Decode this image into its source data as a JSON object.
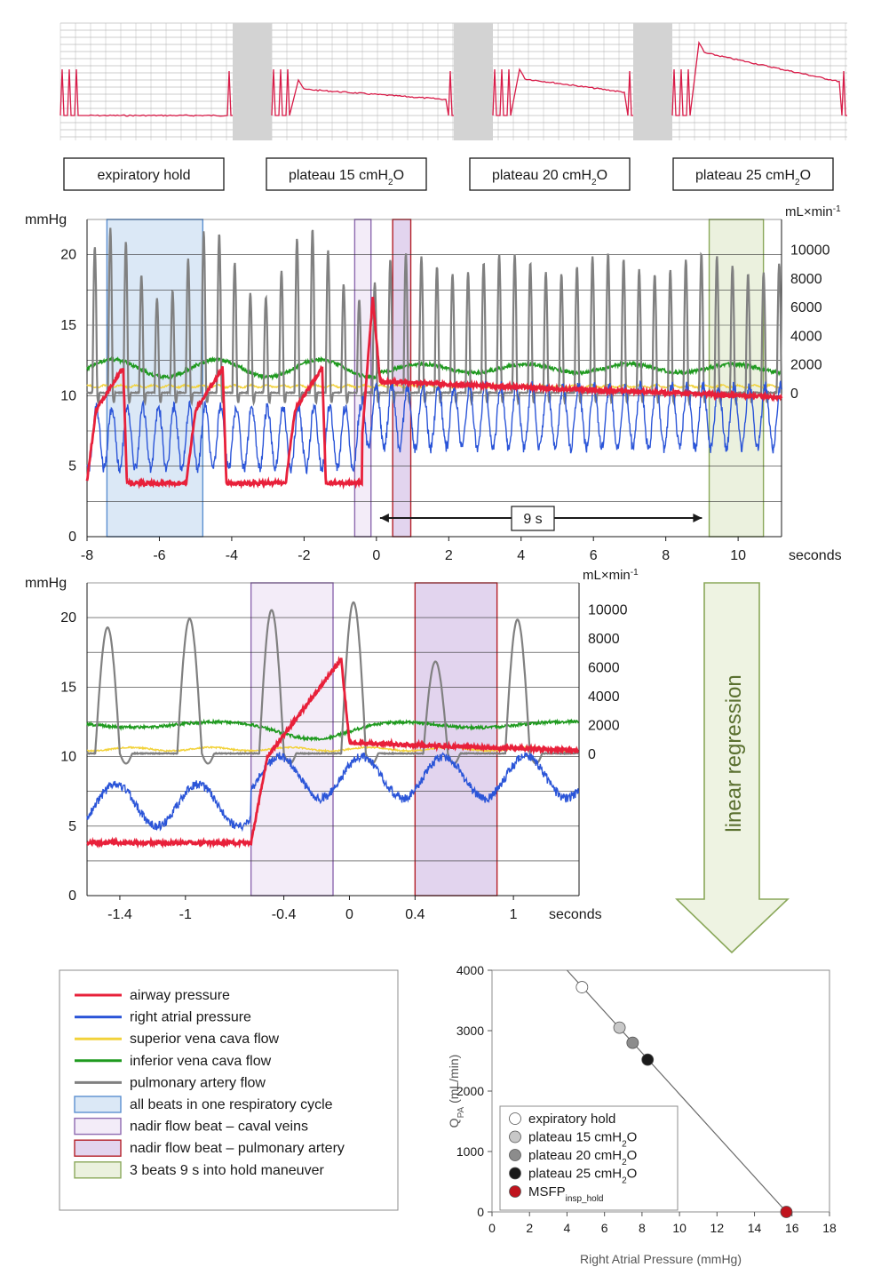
{
  "colors": {
    "airway": "#e8203a",
    "ra": "#2b55d8",
    "svc": "#f2d23a",
    "ivc": "#1f9a1f",
    "pa": "#808080",
    "blue_box": "#dbe8f6",
    "blue_box_edge": "#5b8fd0",
    "light_purple_box": "#f3ecf8",
    "purple_box_edge": "#8e6ab0",
    "dark_purple_box": "#e2d4ee",
    "red_box_edge": "#b42028",
    "green_box": "#ebf1de",
    "green_box_edge": "#8aa85a",
    "grid": "#333333"
  },
  "strip": {
    "labels": [
      {
        "main": "expiratory hold",
        "sub": ""
      },
      {
        "main": "plateau 15 cmH",
        "sub": "2",
        "tail": "O"
      },
      {
        "main": "plateau 20 cmH",
        "sub": "2",
        "tail": "O"
      },
      {
        "main": "plateau 25 cmH",
        "sub": "2",
        "tail": "O"
      }
    ]
  },
  "top_panel": {
    "left_unit": "mmHg",
    "right_unit": "mL×min",
    "right_unit_sup": "-1",
    "left_ticks": [
      "20",
      "15",
      "10",
      "5",
      "0"
    ],
    "right_ticks": [
      "10000",
      "8000",
      "6000",
      "4000",
      "2000",
      "0"
    ],
    "x_ticks": [
      "-8",
      "-6",
      "-4",
      "-2",
      "0",
      "2",
      "4",
      "6",
      "8",
      "10"
    ],
    "x_unit": "seconds",
    "annotation": "9 s"
  },
  "mid_panel": {
    "left_unit": "mmHg",
    "right_unit": "mL×min",
    "right_unit_sup": "-1",
    "left_ticks": [
      "20",
      "15",
      "10",
      "5",
      "0"
    ],
    "right_ticks": [
      "10000",
      "8000",
      "6000",
      "4000",
      "2000",
      "0"
    ],
    "x_ticks": [
      "-1.4",
      "-1",
      "-0.4",
      "0",
      "0.4",
      "1"
    ],
    "x_unit": "seconds"
  },
  "arrow_text": "linear regression",
  "legend": {
    "items": [
      {
        "label": "airway pressure",
        "kind": "line",
        "color": "#e8203a"
      },
      {
        "label": "right atrial pressure",
        "kind": "line",
        "color": "#2b55d8"
      },
      {
        "label": "superior vena cava flow",
        "kind": "line",
        "color": "#f2d23a"
      },
      {
        "label": "inferior vena cava flow",
        "kind": "line",
        "color": "#1f9a1f"
      },
      {
        "label": "pulmonary artery flow",
        "kind": "line",
        "color": "#808080"
      },
      {
        "label": "all beats in one respiratory cycle",
        "kind": "box",
        "fill": "#dbe8f6",
        "edge": "#5b8fd0"
      },
      {
        "label": "nadir flow beat – caval veins",
        "kind": "box",
        "fill": "#f3ecf8",
        "edge": "#8e6ab0"
      },
      {
        "label": "nadir flow beat – pulmonary artery",
        "kind": "box",
        "fill": "#e2d4ee",
        "edge": "#b42028"
      },
      {
        "label": "3 beats 9 s into hold maneuver",
        "kind": "box",
        "fill": "#ebf1de",
        "edge": "#8aa85a"
      }
    ]
  },
  "chart_data": {
    "type": "scatter",
    "xlabel": "Right Atrial Pressure (mmHg)",
    "ylabel": "Q",
    "ylabel_sub": "PA",
    "ylabel_tail": " (mL/min)",
    "xlim": [
      0,
      18
    ],
    "ylim": [
      0,
      4000
    ],
    "x_ticks": [
      "0",
      "2",
      "4",
      "6",
      "8",
      "10",
      "12",
      "14",
      "16",
      "18"
    ],
    "y_ticks": [
      "0",
      "1000",
      "2000",
      "3000",
      "4000"
    ],
    "series": [
      {
        "name": "expiratory hold",
        "x": 4.8,
        "y": 3720,
        "color": "#ffffff"
      },
      {
        "name": "plateau 15 cmH2O",
        "x": 6.8,
        "y": 3050,
        "color": "#c8c8c8"
      },
      {
        "name": "plateau 20 cmH2O",
        "x": 7.5,
        "y": 2800,
        "color": "#8c8c8c"
      },
      {
        "name": "plateau 25 cmH2O",
        "x": 8.3,
        "y": 2520,
        "color": "#1a1a1a"
      },
      {
        "name": "MSFP",
        "x": 15.7,
        "y": 0,
        "color": "#c0141e"
      }
    ],
    "regression_line": {
      "x": [
        4,
        15.7
      ],
      "y": [
        4000,
        0
      ]
    },
    "legend_entries": [
      {
        "main": "expiratory hold",
        "sub": "",
        "tail": ""
      },
      {
        "main": "plateau 15 cmH",
        "sub": "2",
        "tail": "O"
      },
      {
        "main": "plateau 20 cmH",
        "sub": "2",
        "tail": "O"
      },
      {
        "main": "plateau 25 cmH",
        "sub": "2",
        "tail": "O"
      },
      {
        "main": "MSFP",
        "sub": "insp_hold",
        "tail": ""
      }
    ]
  }
}
